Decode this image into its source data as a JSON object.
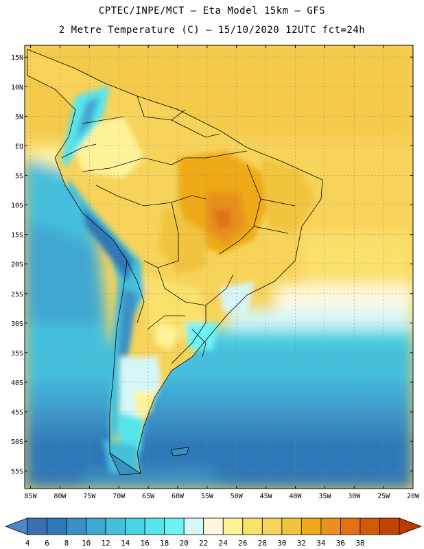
{
  "header": {
    "line1": "CPTEC/INPE/MCT –  Eta Model 15km – GFS",
    "line2": "2 Metre Temperature (C) – 15/10/2020 12UTC fct=24h"
  },
  "map": {
    "lat_labels": [
      "15N",
      "10N",
      "5N",
      "EQ",
      "5S",
      "10S",
      "15S",
      "20S",
      "25S",
      "30S",
      "35S",
      "40S",
      "45S",
      "50S",
      "55S"
    ],
    "lon_labels": [
      "85W",
      "80W",
      "75W",
      "70W",
      "65W",
      "60W",
      "55W",
      "50W",
      "45W",
      "40W",
      "35W",
      "30W",
      "25W",
      "20W"
    ],
    "lat_range": [
      17,
      -58
    ],
    "lon_range": [
      -86,
      -20
    ],
    "grid": "dotted"
  },
  "legend": {
    "ticks": [
      "4",
      "6",
      "8",
      "10",
      "12",
      "14",
      "16",
      "18",
      "20",
      "22",
      "24",
      "26",
      "28",
      "30",
      "32",
      "34",
      "36",
      "38"
    ],
    "colors": [
      "#3a6fb0",
      "#2f78b8",
      "#3a90c5",
      "#3fa7d2",
      "#45bfdc",
      "#4bd3e3",
      "#57e4ec",
      "#6cf4f4",
      "#d6f7f7",
      "#fff8df",
      "#fff39a",
      "#fbe16c",
      "#f7d35a",
      "#f2c33d",
      "#eeaa18",
      "#e9901e",
      "#e07212",
      "#d05a08",
      "#c04400"
    ],
    "under_color": "#4a86c8",
    "over_color": "#c03a00"
  }
}
